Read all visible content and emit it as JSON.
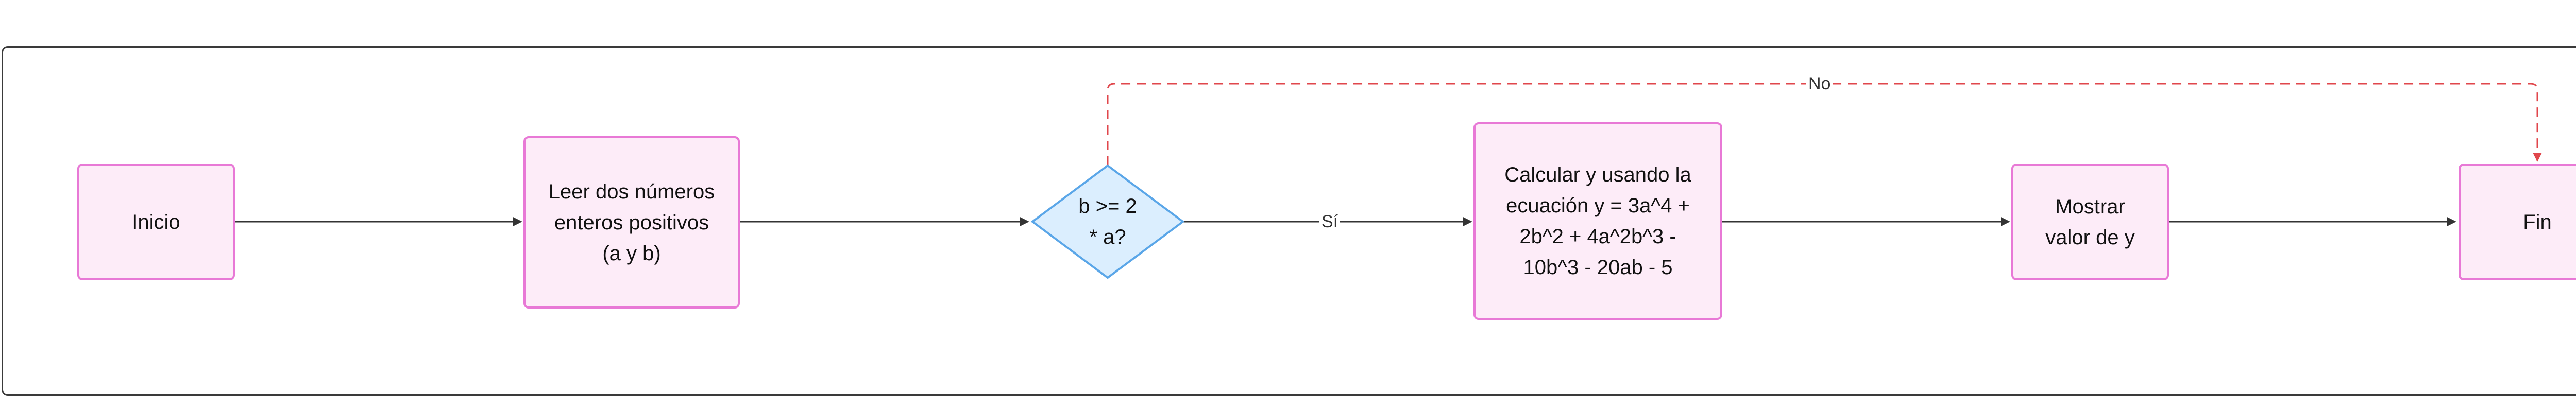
{
  "nodes": {
    "inicio": "Inicio",
    "leer": "Leer dos números\nenteros positivos\n(a y b)",
    "decision": "b >= 2\n* a?",
    "calcular": "Calcular y usando la\necuación y = 3a^4 +\n2b^2 + 4a^2b^3 -\n10b^3 - 20ab - 5",
    "mostrar": "Mostrar\nvalor de y",
    "fin": "Fin"
  },
  "edges": {
    "si": "Sí",
    "no": "No"
  },
  "colors": {
    "process_fill": "#fdecf8",
    "process_border": "#e879d6",
    "decision_fill": "#dbeefe",
    "decision_border": "#5aa6e8",
    "edge": "#333333",
    "no_edge": "#e0474c"
  }
}
